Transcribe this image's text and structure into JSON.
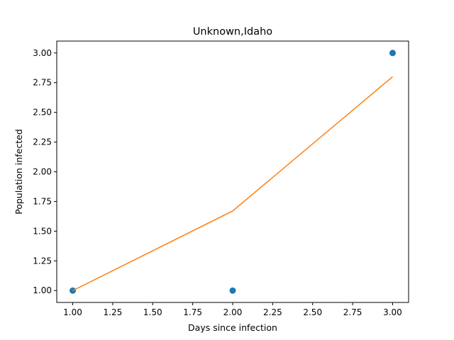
{
  "chart_data": {
    "type": "scatter",
    "title": "Unknown,Idaho",
    "xlabel": "Days since infection",
    "ylabel": "Population infected",
    "xlim": [
      0.9,
      3.1
    ],
    "ylim": [
      0.9,
      3.1
    ],
    "xticks": [
      "1.00",
      "1.25",
      "1.50",
      "1.75",
      "2.00",
      "2.25",
      "2.50",
      "2.75",
      "3.00"
    ],
    "yticks": [
      "1.00",
      "1.25",
      "1.50",
      "1.75",
      "2.00",
      "2.25",
      "2.50",
      "2.75",
      "3.00"
    ],
    "grid": false,
    "series": [
      {
        "kind": "scatter",
        "color": "#1f77b4",
        "x": [
          1,
          2,
          3
        ],
        "y": [
          1,
          1,
          3
        ]
      },
      {
        "kind": "line",
        "color": "#ff7f0e",
        "x": [
          1,
          2,
          3
        ],
        "y": [
          1.0,
          1.67,
          2.8
        ]
      }
    ]
  }
}
